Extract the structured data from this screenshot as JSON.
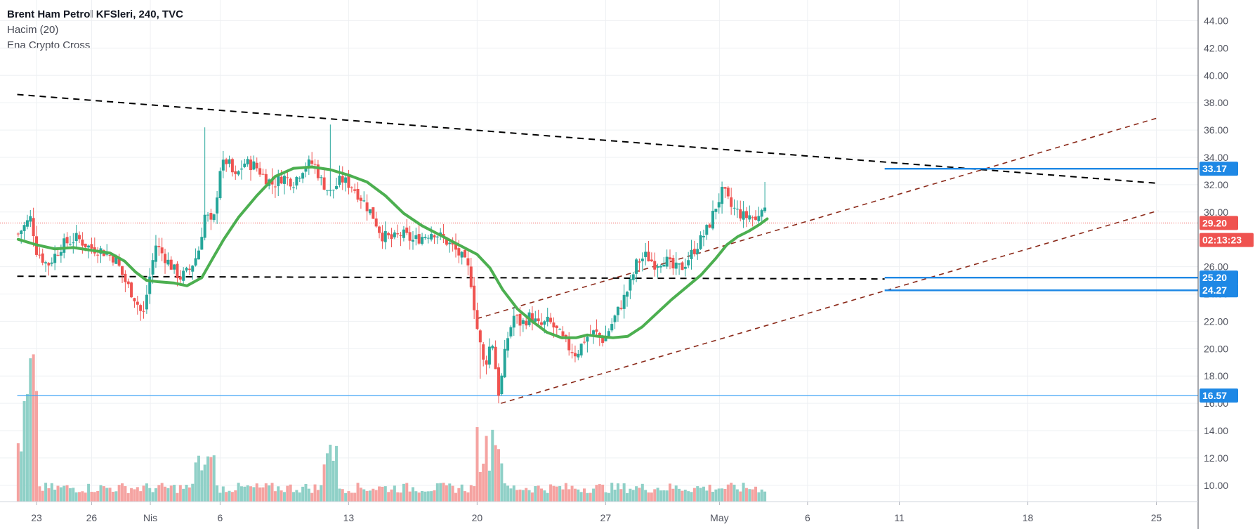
{
  "legend": {
    "title": "Brent Ham Petrol KFSleri, 240, TVC",
    "volume": "Hacim (20)",
    "indicator": "Ena Crypto Cross"
  },
  "colors": {
    "up": "#26a69a",
    "down": "#ef5350",
    "up_vol": "#8fd0c7",
    "down_vol": "#f5a3a1",
    "ema": "#4caf50",
    "level_blue": "#1e88e5",
    "channel": "#8b2a1a",
    "grid": "#eef0f3",
    "axis_text": "#50535e"
  },
  "chart_data": {
    "type": "candlestick",
    "title": "Brent Ham Petrol KFSleri, 240, TVC",
    "ylim": [
      8.0,
      45.0
    ],
    "y_ticks": [
      "44.00",
      "42.00",
      "40.00",
      "38.00",
      "36.00",
      "34.00",
      "32.00",
      "30.00",
      "28.00",
      "26.00",
      "24.00",
      "22.00",
      "20.00",
      "18.00",
      "16.00",
      "14.00",
      "12.00",
      "10.00"
    ],
    "x_tick_labels": [
      {
        "label": "23",
        "day": 0
      },
      {
        "label": "26",
        "day": 3
      },
      {
        "label": "Nis",
        "day": 6.2
      },
      {
        "label": "6",
        "day": 10
      },
      {
        "label": "13",
        "day": 17
      },
      {
        "label": "20",
        "day": 24
      },
      {
        "label": "27",
        "day": 31
      },
      {
        "label": "May",
        "day": 37.2
      },
      {
        "label": "6",
        "day": 42
      },
      {
        "label": "11",
        "day": 47
      },
      {
        "label": "18",
        "day": 54
      },
      {
        "label": "25",
        "day": 61
      }
    ],
    "x_range_days": [
      -1.05,
      61.1
    ],
    "price_tags": [
      {
        "label": "33.17",
        "value": 33.17,
        "color": "#1e88e5"
      },
      {
        "label": "29.20",
        "value": 29.2,
        "color": "#ef5350"
      },
      {
        "label": "02:13:23",
        "value": 27.95,
        "color": "#ef5350"
      },
      {
        "label": "25.20",
        "value": 25.2,
        "color": "#1e88e5"
      },
      {
        "label": "24.27",
        "value": 24.27,
        "color": "#1e88e5"
      },
      {
        "label": "16.57",
        "value": 16.57,
        "color": "#1e88e5"
      }
    ],
    "current_price": 29.2,
    "close_path": [
      [
        -1.0,
        28.4
      ],
      [
        -0.3,
        29.6
      ],
      [
        0.0,
        27.2
      ],
      [
        0.6,
        26.1
      ],
      [
        1.4,
        27.6
      ],
      [
        2.2,
        28.1
      ],
      [
        2.9,
        27.4
      ],
      [
        3.5,
        27.2
      ],
      [
        4.3,
        26.6
      ],
      [
        4.8,
        25.0
      ],
      [
        5.4,
        23.6
      ],
      [
        5.8,
        22.3
      ],
      [
        6.1,
        24.8
      ],
      [
        6.5,
        27.6
      ],
      [
        7.2,
        26.3
      ],
      [
        7.8,
        25.2
      ],
      [
        8.3,
        25.7
      ],
      [
        8.8,
        27.0
      ],
      [
        9.2,
        30.0
      ],
      [
        9.6,
        28.8
      ],
      [
        10.0,
        33.2
      ],
      [
        10.4,
        33.8
      ],
      [
        10.8,
        32.4
      ],
      [
        11.3,
        33.6
      ],
      [
        11.9,
        33.4
      ],
      [
        12.4,
        32.6
      ],
      [
        12.9,
        32.0
      ],
      [
        13.4,
        32.6
      ],
      [
        14.0,
        32.2
      ],
      [
        14.6,
        33.4
      ],
      [
        15.1,
        33.6
      ],
      [
        15.5,
        32.3
      ],
      [
        16.0,
        31.4
      ],
      [
        16.6,
        32.4
      ],
      [
        17.2,
        31.9
      ],
      [
        17.7,
        31.0
      ],
      [
        18.3,
        29.8
      ],
      [
        18.8,
        28.3
      ],
      [
        19.4,
        28.0
      ],
      [
        19.9,
        28.4
      ],
      [
        20.5,
        27.9
      ],
      [
        21.0,
        28.2
      ],
      [
        21.6,
        28.6
      ],
      [
        22.2,
        28.0
      ],
      [
        22.7,
        27.4
      ],
      [
        23.2,
        26.6
      ],
      [
        23.6,
        25.6
      ],
      [
        24.0,
        21.5
      ],
      [
        24.4,
        18.6
      ],
      [
        24.8,
        20.8
      ],
      [
        25.2,
        16.5
      ],
      [
        25.6,
        20.5
      ],
      [
        26.0,
        22.4
      ],
      [
        26.4,
        21.8
      ],
      [
        26.9,
        22.4
      ],
      [
        27.4,
        21.6
      ],
      [
        27.9,
        22.0
      ],
      [
        28.4,
        21.2
      ],
      [
        28.9,
        20.2
      ],
      [
        29.4,
        19.6
      ],
      [
        29.9,
        20.8
      ],
      [
        30.4,
        21.2
      ],
      [
        30.9,
        20.6
      ],
      [
        31.4,
        22.0
      ],
      [
        31.9,
        23.4
      ],
      [
        32.3,
        24.6
      ],
      [
        32.7,
        26.3
      ],
      [
        33.2,
        26.8
      ],
      [
        33.7,
        26.2
      ],
      [
        34.2,
        26.6
      ],
      [
        34.7,
        25.8
      ],
      [
        35.2,
        26.0
      ],
      [
        35.7,
        27.0
      ],
      [
        36.2,
        28.0
      ],
      [
        36.6,
        28.9
      ],
      [
        37.0,
        30.4
      ],
      [
        37.4,
        31.6
      ],
      [
        37.8,
        30.4
      ],
      [
        38.2,
        30.0
      ],
      [
        38.6,
        29.6
      ],
      [
        38.9,
        29.8
      ],
      [
        39.2,
        29.3
      ],
      [
        39.5,
        30.6
      ],
      [
        39.8,
        29.4
      ]
    ],
    "ema_path": [
      [
        -1.0,
        28.0
      ],
      [
        0.0,
        27.6
      ],
      [
        1.0,
        27.3
      ],
      [
        2.0,
        27.4
      ],
      [
        3.0,
        27.2
      ],
      [
        4.0,
        27.0
      ],
      [
        4.8,
        26.4
      ],
      [
        5.4,
        25.6
      ],
      [
        6.0,
        25.0
      ],
      [
        6.6,
        24.9
      ],
      [
        7.5,
        24.8
      ],
      [
        8.2,
        24.6
      ],
      [
        9.0,
        25.2
      ],
      [
        9.6,
        26.6
      ],
      [
        10.2,
        28.0
      ],
      [
        11.0,
        29.6
      ],
      [
        12.0,
        31.2
      ],
      [
        13.0,
        32.6
      ],
      [
        14.0,
        33.2
      ],
      [
        15.0,
        33.3
      ],
      [
        16.0,
        33.1
      ],
      [
        17.0,
        32.7
      ],
      [
        18.0,
        32.2
      ],
      [
        19.0,
        31.2
      ],
      [
        20.0,
        29.9
      ],
      [
        21.0,
        29.0
      ],
      [
        22.0,
        28.3
      ],
      [
        23.0,
        27.6
      ],
      [
        24.0,
        26.9
      ],
      [
        24.7,
        25.9
      ],
      [
        25.4,
        24.3
      ],
      [
        26.2,
        22.9
      ],
      [
        27.0,
        22.0
      ],
      [
        27.8,
        21.2
      ],
      [
        28.6,
        20.8
      ],
      [
        29.4,
        20.8
      ],
      [
        30.0,
        21.0
      ],
      [
        30.6,
        20.9
      ],
      [
        31.4,
        20.8
      ],
      [
        32.2,
        20.9
      ],
      [
        33.0,
        21.6
      ],
      [
        33.8,
        22.6
      ],
      [
        34.6,
        23.6
      ],
      [
        35.4,
        24.5
      ],
      [
        36.2,
        25.4
      ],
      [
        37.0,
        26.6
      ],
      [
        37.6,
        27.6
      ],
      [
        38.2,
        28.2
      ],
      [
        38.8,
        28.6
      ],
      [
        39.4,
        29.1
      ],
      [
        39.8,
        29.5
      ]
    ],
    "trend_lines": [
      {
        "name": "upper-resistance",
        "style": "dashed-black",
        "from": [
          -1.05,
          38.6
        ],
        "to": [
          61.1,
          32.1
        ]
      },
      {
        "name": "horizontal-support",
        "style": "dashed-black",
        "from": [
          -1.05,
          25.3
        ],
        "to": [
          46.2,
          25.1
        ]
      },
      {
        "name": "channel-upper",
        "style": "dashed-brown",
        "from": [
          24.0,
          22.2
        ],
        "to": [
          61.1,
          36.9
        ]
      },
      {
        "name": "channel-lower",
        "style": "dashed-brown",
        "from": [
          25.3,
          16.0
        ],
        "to": [
          61.1,
          30.1
        ]
      }
    ],
    "levels": [
      {
        "name": "level-33-17",
        "value": 33.17,
        "from_day": 46.2
      },
      {
        "name": "level-25-20",
        "value": 25.2,
        "from_day": 46.2
      },
      {
        "name": "level-24-27",
        "value": 24.27,
        "from_day": 46.2
      },
      {
        "name": "level-16-57",
        "value": 16.57,
        "from_day": -1.05
      }
    ]
  }
}
